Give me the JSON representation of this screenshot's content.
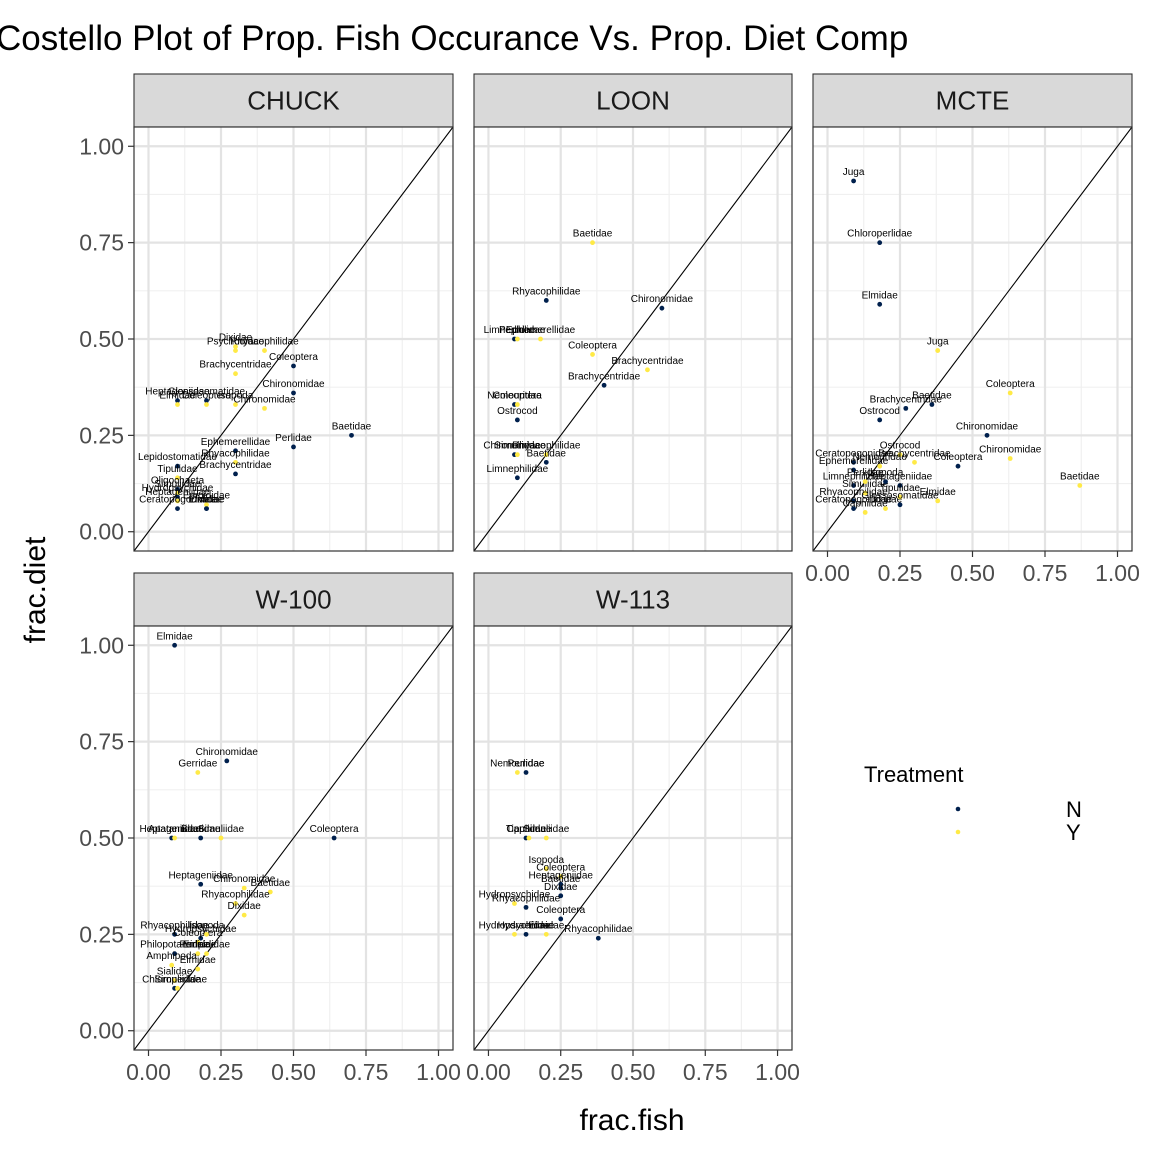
{
  "chart_data": {
    "type": "scatter",
    "title": "Costello Plot of Prop. Fish Occurance Vs. Prop. Diet Comp",
    "xlabel": "frac.fish",
    "ylabel": "frac.diet",
    "xlim": [
      -0.05,
      1.05
    ],
    "ylim": [
      -0.05,
      1.05
    ],
    "x_ticks": [
      "0.00",
      "0.25",
      "0.50",
      "0.75",
      "1.00"
    ],
    "y_ticks": [
      "0.00",
      "0.25",
      "0.50",
      "0.75",
      "1.00"
    ],
    "reference_line": "y = x",
    "grid": true,
    "legend": {
      "title": "Treatment",
      "position": "right",
      "items": [
        {
          "label": "N",
          "color": "#00204D"
        },
        {
          "label": "Y",
          "color": "#FFEA46"
        }
      ]
    },
    "panels": [
      {
        "name": "CHUCK",
        "points": [
          {
            "label": "Dixidae",
            "x": 0.3,
            "y": 0.48,
            "t": "Y"
          },
          {
            "label": "Psychodidae",
            "x": 0.3,
            "y": 0.47,
            "t": "Y"
          },
          {
            "label": "Rhyacophilidae",
            "x": 0.4,
            "y": 0.47,
            "t": "Y"
          },
          {
            "label": "Coleoptera",
            "x": 0.5,
            "y": 0.43,
            "t": "N"
          },
          {
            "label": "Brachycentridae",
            "x": 0.3,
            "y": 0.41,
            "t": "Y"
          },
          {
            "label": "Chironomidae",
            "x": 0.5,
            "y": 0.36,
            "t": "N"
          },
          {
            "label": "Heptageniidae",
            "x": 0.1,
            "y": 0.34,
            "t": "N"
          },
          {
            "label": "Elmidae",
            "x": 0.1,
            "y": 0.33,
            "t": "Y"
          },
          {
            "label": "Glossosomatidae",
            "x": 0.2,
            "y": 0.34,
            "t": "N"
          },
          {
            "label": "Coleoptera",
            "x": 0.2,
            "y": 0.33,
            "t": "Y"
          },
          {
            "label": "Isopoda",
            "x": 0.3,
            "y": 0.33,
            "t": "Y"
          },
          {
            "label": "Chironomidae",
            "x": 0.4,
            "y": 0.32,
            "t": "Y"
          },
          {
            "label": "Baetidae",
            "x": 0.7,
            "y": 0.25,
            "t": "N"
          },
          {
            "label": "Perlidae",
            "x": 0.5,
            "y": 0.22,
            "t": "N"
          },
          {
            "label": "Ephemerellidae",
            "x": 0.3,
            "y": 0.21,
            "t": "N"
          },
          {
            "label": "Rhyacophilidae",
            "x": 0.3,
            "y": 0.18,
            "t": "Y"
          },
          {
            "label": "Lepidostomatidae",
            "x": 0.1,
            "y": 0.17,
            "t": "N"
          },
          {
            "label": "Brachycentridae",
            "x": 0.3,
            "y": 0.15,
            "t": "N"
          },
          {
            "label": "Tipulidae",
            "x": 0.1,
            "y": 0.14,
            "t": "Y"
          },
          {
            "label": "Oligochaeta",
            "x": 0.1,
            "y": 0.11,
            "t": "N"
          },
          {
            "label": "Simuliidae",
            "x": 0.1,
            "y": 0.1,
            "t": "Y"
          },
          {
            "label": "Hydropsychidae",
            "x": 0.1,
            "y": 0.09,
            "t": "N"
          },
          {
            "label": "Heptageniidae",
            "x": 0.1,
            "y": 0.08,
            "t": "Y"
          },
          {
            "label": "Ceratopogonidae",
            "x": 0.1,
            "y": 0.06,
            "t": "N"
          },
          {
            "label": "Dixidae",
            "x": 0.2,
            "y": 0.06,
            "t": "N"
          },
          {
            "label": "Empididae",
            "x": 0.2,
            "y": 0.07,
            "t": "Y"
          },
          {
            "label": "Elmidae",
            "x": 0.2,
            "y": 0.06,
            "t": "N"
          }
        ]
      },
      {
        "name": "LOON",
        "points": [
          {
            "label": "Baetidae",
            "x": 0.36,
            "y": 0.75,
            "t": "Y"
          },
          {
            "label": "Rhyacophilidae",
            "x": 0.2,
            "y": 0.6,
            "t": "N"
          },
          {
            "label": "Chironomidae",
            "x": 0.6,
            "y": 0.58,
            "t": "N"
          },
          {
            "label": "Limnephilidae",
            "x": 0.09,
            "y": 0.5,
            "t": "N"
          },
          {
            "label": "Perlidae",
            "x": 0.1,
            "y": 0.5,
            "t": "Y"
          },
          {
            "label": "Ephemerellidae",
            "x": 0.18,
            "y": 0.5,
            "t": "Y"
          },
          {
            "label": "Coleoptera",
            "x": 0.36,
            "y": 0.46,
            "t": "Y"
          },
          {
            "label": "Brachycentridae",
            "x": 0.55,
            "y": 0.42,
            "t": "Y"
          },
          {
            "label": "Brachycentridae",
            "x": 0.4,
            "y": 0.38,
            "t": "N"
          },
          {
            "label": "Nemouridae",
            "x": 0.09,
            "y": 0.33,
            "t": "N"
          },
          {
            "label": "Coleoptera",
            "x": 0.1,
            "y": 0.33,
            "t": "Y"
          },
          {
            "label": "Ostrocod",
            "x": 0.1,
            "y": 0.29,
            "t": "N"
          },
          {
            "label": "Chironomidae",
            "x": 0.09,
            "y": 0.2,
            "t": "N"
          },
          {
            "label": "Simuliidae",
            "x": 0.1,
            "y": 0.2,
            "t": "Y"
          },
          {
            "label": "Rhyacophilidae",
            "x": 0.2,
            "y": 0.2,
            "t": "Y"
          },
          {
            "label": "Baetidae",
            "x": 0.2,
            "y": 0.18,
            "t": "N"
          },
          {
            "label": "Limnephilidae",
            "x": 0.1,
            "y": 0.14,
            "t": "N"
          }
        ]
      },
      {
        "name": "MCTE",
        "points": [
          {
            "label": "Juga",
            "x": 0.09,
            "y": 0.91,
            "t": "N"
          },
          {
            "label": "Chloroperlidae",
            "x": 0.18,
            "y": 0.75,
            "t": "N"
          },
          {
            "label": "Elmidae",
            "x": 0.18,
            "y": 0.59,
            "t": "N"
          },
          {
            "label": "Juga",
            "x": 0.38,
            "y": 0.47,
            "t": "Y"
          },
          {
            "label": "Coleoptera",
            "x": 0.63,
            "y": 0.36,
            "t": "Y"
          },
          {
            "label": "Baetidae",
            "x": 0.36,
            "y": 0.33,
            "t": "N"
          },
          {
            "label": "Brachycentridae",
            "x": 0.27,
            "y": 0.32,
            "t": "N"
          },
          {
            "label": "Ostrocod",
            "x": 0.18,
            "y": 0.29,
            "t": "N"
          },
          {
            "label": "Chironomidae",
            "x": 0.55,
            "y": 0.25,
            "t": "N"
          },
          {
            "label": "Ostrocod",
            "x": 0.25,
            "y": 0.2,
            "t": "Y"
          },
          {
            "label": "Chironomidae",
            "x": 0.63,
            "y": 0.19,
            "t": "Y"
          },
          {
            "label": "Brachycentridae",
            "x": 0.3,
            "y": 0.18,
            "t": "Y"
          },
          {
            "label": "Coleoptera",
            "x": 0.45,
            "y": 0.17,
            "t": "N"
          },
          {
            "label": "Ceratopogonidae",
            "x": 0.09,
            "y": 0.18,
            "t": "N"
          },
          {
            "label": "Ephemerellidae",
            "x": 0.09,
            "y": 0.16,
            "t": "N"
          },
          {
            "label": "Baetidae",
            "x": 0.87,
            "y": 0.12,
            "t": "Y"
          },
          {
            "label": "Limnephilidae",
            "x": 0.09,
            "y": 0.12,
            "t": "N"
          },
          {
            "label": "Rhyacophilidae",
            "x": 0.09,
            "y": 0.08,
            "t": "N"
          },
          {
            "label": "Elmidae",
            "x": 0.38,
            "y": 0.08,
            "t": "Y"
          },
          {
            "label": "Ceratopogonidae",
            "x": 0.09,
            "y": 0.06,
            "t": "N"
          },
          {
            "label": "Capniidae",
            "x": 0.13,
            "y": 0.05,
            "t": "Y"
          },
          {
            "label": "Dixidae",
            "x": 0.2,
            "y": 0.06,
            "t": "Y"
          },
          {
            "label": "Simuliidae",
            "x": 0.13,
            "y": 0.1,
            "t": "Y"
          },
          {
            "label": "Heptageniidae",
            "x": 0.25,
            "y": 0.12,
            "t": "N"
          },
          {
            "label": "Isopoda",
            "x": 0.2,
            "y": 0.13,
            "t": "N"
          },
          {
            "label": "Perlidae",
            "x": 0.13,
            "y": 0.13,
            "t": "Y"
          },
          {
            "label": "Tipulidae",
            "x": 0.25,
            "y": 0.09,
            "t": "Y"
          },
          {
            "label": "Nemouridae",
            "x": 0.18,
            "y": 0.17,
            "t": "Y"
          },
          {
            "label": "Glossosomatidae",
            "x": 0.25,
            "y": 0.07,
            "t": "N"
          }
        ]
      },
      {
        "name": "W-100",
        "points": [
          {
            "label": "Elmidae",
            "x": 0.09,
            "y": 1.0,
            "t": "N"
          },
          {
            "label": "Chironomidae",
            "x": 0.27,
            "y": 0.7,
            "t": "N"
          },
          {
            "label": "Gerridae",
            "x": 0.17,
            "y": 0.67,
            "t": "Y"
          },
          {
            "label": "Heptageniidae",
            "x": 0.08,
            "y": 0.5,
            "t": "N"
          },
          {
            "label": "Apataniidae",
            "x": 0.09,
            "y": 0.5,
            "t": "Y"
          },
          {
            "label": "Baetidae",
            "x": 0.18,
            "y": 0.5,
            "t": "N"
          },
          {
            "label": "Simuliidae",
            "x": 0.25,
            "y": 0.5,
            "t": "Y"
          },
          {
            "label": "Coleoptera",
            "x": 0.64,
            "y": 0.5,
            "t": "N"
          },
          {
            "label": "Heptageniidae",
            "x": 0.18,
            "y": 0.38,
            "t": "N"
          },
          {
            "label": "Chironomidae",
            "x": 0.33,
            "y": 0.37,
            "t": "Y"
          },
          {
            "label": "Baetidae",
            "x": 0.42,
            "y": 0.36,
            "t": "Y"
          },
          {
            "label": "Rhyacophilidae",
            "x": 0.3,
            "y": 0.33,
            "t": "Y"
          },
          {
            "label": "Dixidae",
            "x": 0.33,
            "y": 0.3,
            "t": "Y"
          },
          {
            "label": "Rhyacophilidae",
            "x": 0.09,
            "y": 0.25,
            "t": "N"
          },
          {
            "label": "Hydropsychidae",
            "x": 0.18,
            "y": 0.24,
            "t": "N"
          },
          {
            "label": "Coleoptera",
            "x": 0.17,
            "y": 0.23,
            "t": "Y"
          },
          {
            "label": "Isopoda",
            "x": 0.2,
            "y": 0.25,
            "t": "Y"
          },
          {
            "label": "Philopotamidae",
            "x": 0.09,
            "y": 0.2,
            "t": "N"
          },
          {
            "label": "Perlidae",
            "x": 0.17,
            "y": 0.2,
            "t": "Y"
          },
          {
            "label": "Empididae",
            "x": 0.2,
            "y": 0.2,
            "t": "Y"
          },
          {
            "label": "Amphipoda",
            "x": 0.08,
            "y": 0.17,
            "t": "Y"
          },
          {
            "label": "Elmidae",
            "x": 0.17,
            "y": 0.16,
            "t": "Y"
          },
          {
            "label": "Sialidae",
            "x": 0.09,
            "y": 0.13,
            "t": "Y"
          },
          {
            "label": "Chloroperlidae",
            "x": 0.09,
            "y": 0.11,
            "t": "N"
          },
          {
            "label": "Simuliidae",
            "x": 0.1,
            "y": 0.11,
            "t": "Y"
          }
        ]
      },
      {
        "name": "W-113",
        "points": [
          {
            "label": "Nemouridae",
            "x": 0.1,
            "y": 0.67,
            "t": "Y"
          },
          {
            "label": "Perlidae",
            "x": 0.13,
            "y": 0.67,
            "t": "N"
          },
          {
            "label": "Tipulidae",
            "x": 0.13,
            "y": 0.5,
            "t": "N"
          },
          {
            "label": "Capniidae",
            "x": 0.14,
            "y": 0.5,
            "t": "Y"
          },
          {
            "label": "Simuliidae",
            "x": 0.2,
            "y": 0.5,
            "t": "Y"
          },
          {
            "label": "Isopoda",
            "x": 0.2,
            "y": 0.42,
            "t": "Y"
          },
          {
            "label": "Coleoptera",
            "x": 0.25,
            "y": 0.4,
            "t": "Y"
          },
          {
            "label": "Heptageniidae",
            "x": 0.25,
            "y": 0.38,
            "t": "N"
          },
          {
            "label": "Baetidae",
            "x": 0.25,
            "y": 0.37,
            "t": "N"
          },
          {
            "label": "Dixidae",
            "x": 0.25,
            "y": 0.35,
            "t": "N"
          },
          {
            "label": "Hydropsychidae",
            "x": 0.09,
            "y": 0.33,
            "t": "Y"
          },
          {
            "label": "Rhyacophilidae",
            "x": 0.13,
            "y": 0.32,
            "t": "N"
          },
          {
            "label": "Coleoptera",
            "x": 0.25,
            "y": 0.29,
            "t": "N"
          },
          {
            "label": "Hydropsychidae",
            "x": 0.09,
            "y": 0.25,
            "t": "Y"
          },
          {
            "label": "Hydraenidae",
            "x": 0.13,
            "y": 0.25,
            "t": "N"
          },
          {
            "label": "Elmidae",
            "x": 0.2,
            "y": 0.25,
            "t": "Y"
          },
          {
            "label": "Rhyacophilidae",
            "x": 0.38,
            "y": 0.24,
            "t": "N"
          }
        ]
      }
    ]
  }
}
